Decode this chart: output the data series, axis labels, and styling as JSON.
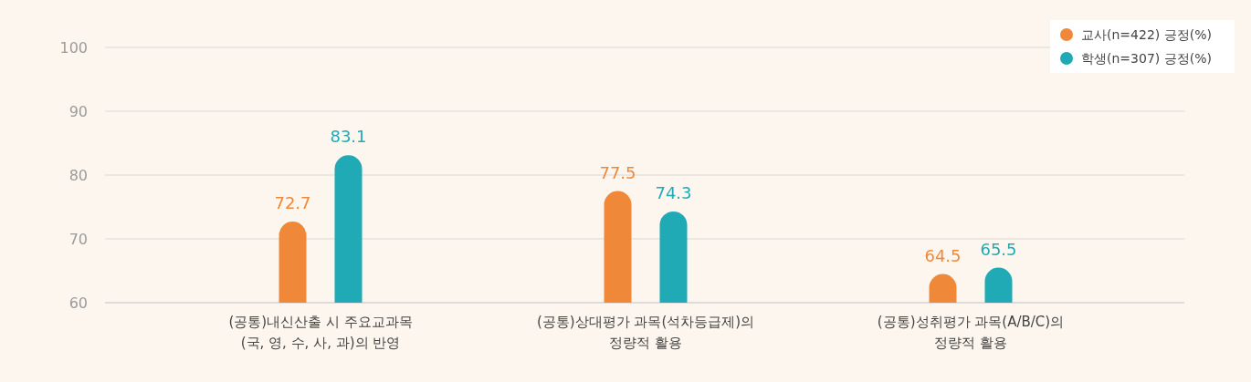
{
  "chart_data": {
    "type": "bar",
    "categories": [
      "(공통)내신산출 시 주요교과목\n(국, 영, 수, 사, 과)의 반영",
      "(공통)상대평가 과목(석차등급제)의\n정량적 활용",
      "(공통)성취평가 과목(A/B/C)의\n정량적 활용"
    ],
    "series": [
      {
        "name": "교사(n=422) 긍정(%)",
        "color": "#f0883a",
        "values": [
          72.7,
          77.5,
          64.5
        ]
      },
      {
        "name": "학생(n=307) 긍정(%)",
        "color": "#20aab5",
        "values": [
          83.1,
          74.3,
          65.5
        ]
      }
    ],
    "ylim": [
      60,
      100
    ],
    "yticks": [
      60,
      70,
      80,
      90,
      100
    ],
    "grid": "y",
    "data_labels": true,
    "legend": "top right",
    "marker": "circle"
  }
}
